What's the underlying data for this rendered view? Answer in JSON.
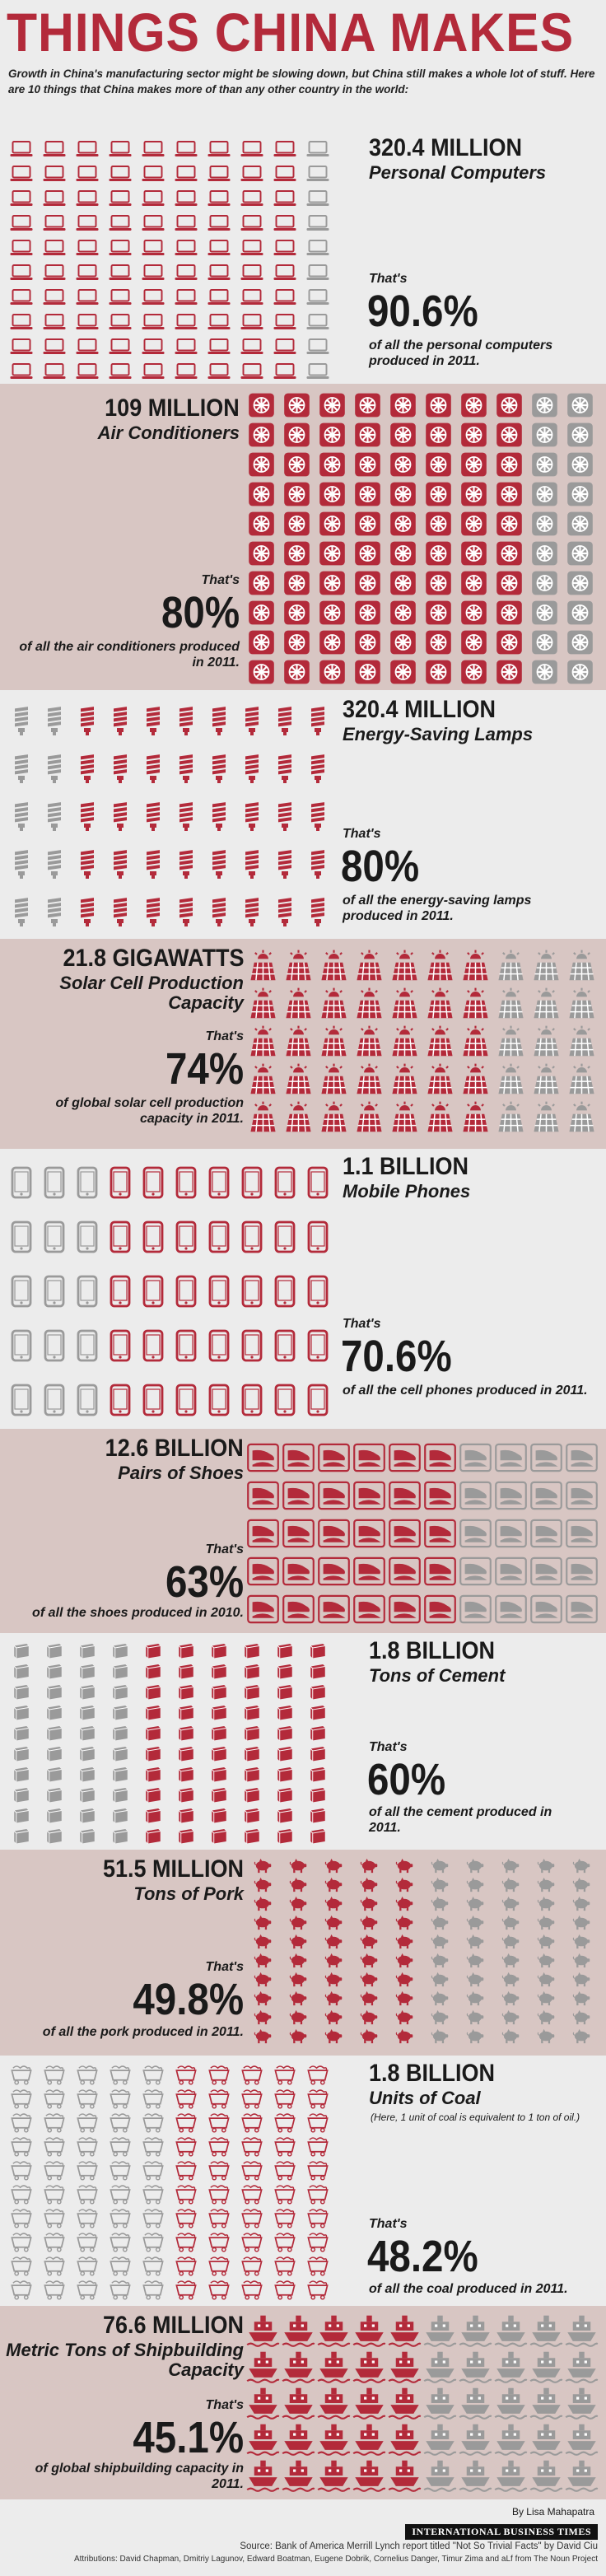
{
  "header": {
    "title": "THINGS CHINA MAKES",
    "intro": "Growth in China's manufacturing sector might be slowing down, but China still makes a whole lot of stuff. Here are 10 things that China makes more of than any other country in the world:"
  },
  "colors": {
    "red": "#b32a3a",
    "gray": "#9a9a9a",
    "light_bg": "#ececec",
    "dark_bg": "#d8c6c3"
  },
  "sections": [
    {
      "id": "computers",
      "icon": "laptop-icon",
      "amount": "320.4 MILLION",
      "item": "Personal Computers",
      "thats": "That's",
      "percent": "90.6%",
      "percent_value": 90.6,
      "desc": "of all the personal computers produced in 2011."
    },
    {
      "id": "air-conditioners",
      "icon": "air-conditioner-icon",
      "amount": "109 MILLION",
      "item": "Air Conditioners",
      "thats": "That's",
      "percent": "80%",
      "percent_value": 80,
      "desc": "of all the air conditioners produced in 2011."
    },
    {
      "id": "lamps",
      "icon": "lamp-icon",
      "amount": "320.4 MILLION",
      "item": "Energy-Saving Lamps",
      "thats": "That's",
      "percent": "80%",
      "percent_value": 80,
      "desc": "of all the energy-saving lamps produced in 2011."
    },
    {
      "id": "solar",
      "icon": "solar-cell-icon",
      "amount": "21.8 GIGAWATTS",
      "item": "Solar Cell Production Capacity",
      "thats": "That's",
      "percent": "74%",
      "percent_value": 74,
      "desc": "of global solar cell production capacity in 2011."
    },
    {
      "id": "phones",
      "icon": "mobile-phone-icon",
      "amount": "1.1 BILLION",
      "item": "Mobile Phones",
      "thats": "That's",
      "percent": "70.6%",
      "percent_value": 70.6,
      "desc": "of all the cell phones produced in 2011."
    },
    {
      "id": "shoes",
      "icon": "shoe-icon",
      "amount": "12.6 BILLION",
      "item": "Pairs of Shoes",
      "thats": "That's",
      "percent": "63%",
      "percent_value": 63,
      "desc": "of all the shoes produced in 2010."
    },
    {
      "id": "cement",
      "icon": "cement-bag-icon",
      "amount": "1.8 BILLION",
      "item": "Tons of Cement",
      "thats": "That's",
      "percent": "60%",
      "percent_value": 60,
      "desc": "of all the cement produced in 2011."
    },
    {
      "id": "pork",
      "icon": "pig-icon",
      "amount": "51.5 MILLION",
      "item": "Tons of Pork",
      "thats": "That's",
      "percent": "49.8%",
      "percent_value": 49.8,
      "desc": "of all the pork produced in 2011."
    },
    {
      "id": "coal",
      "icon": "coal-cart-icon",
      "amount": "1.8 BILLION",
      "item": "Units of Coal",
      "note": "(Here, 1 unit of coal is equivalent to 1 ton of oil.)",
      "thats": "That's",
      "percent": "48.2%",
      "percent_value": 48.2,
      "desc": "of all the coal produced in 2011."
    },
    {
      "id": "ships",
      "icon": "ship-icon",
      "amount": "76.6 MILLION",
      "item": "Metric Tons of Shipbuilding Capacity",
      "thats": "That's",
      "percent": "45.1%",
      "percent_value": 45.1,
      "desc": "of global shipbuilding capacity in 2011."
    }
  ],
  "footer": {
    "byline": "By Lisa Mahapatra",
    "brand": "INTERNATIONAL BUSINESS TIMES",
    "source": "Source: Bank of America Merrill Lynch report titled \"Not So Trivial Facts\" by David Ciu",
    "attributions": "Attributions: David Chapman, Dmitriy Lagunov, Edward Boatman, Eugene Dobrik, Cornelius Danger, Timur Zima and aLf from The Noun Project"
  }
}
